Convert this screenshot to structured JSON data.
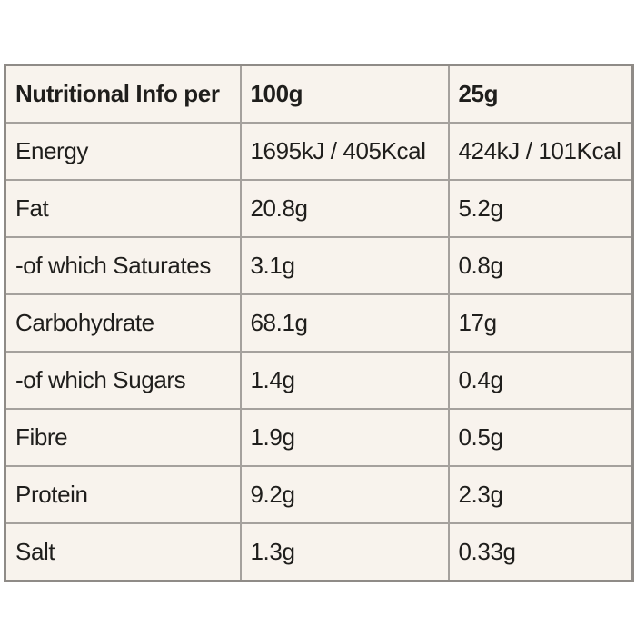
{
  "table": {
    "header": {
      "label": "Nutritional Info per",
      "col_100g": "100g",
      "col_25g": "25g"
    },
    "rows": [
      {
        "label": "Energy",
        "per_100g": "1695kJ / 405Kcal",
        "per_25g": "424kJ / 101Kcal"
      },
      {
        "label": "Fat",
        "per_100g": "20.8g",
        "per_25g": "5.2g"
      },
      {
        "label": "-of which Saturates",
        "per_100g": "3.1g",
        "per_25g": "0.8g"
      },
      {
        "label": "Carbohydrate",
        "per_100g": "68.1g",
        "per_25g": "17g"
      },
      {
        "label": "-of which Sugars",
        "per_100g": "1.4g",
        "per_25g": "0.4g"
      },
      {
        "label": "Fibre",
        "per_100g": "1.9g",
        "per_25g": "0.5g"
      },
      {
        "label": "Protein",
        "per_100g": "9.2g",
        "per_25g": "2.3g"
      },
      {
        "label": "Salt",
        "per_100g": "1.3g",
        "per_25g": "0.33g"
      }
    ],
    "colors": {
      "page_background": "#ffffff",
      "cell_background": "#f8f3ed",
      "border": "#a5a19d",
      "outer_border": "#8f8b87",
      "text": "#1f1e1c"
    }
  }
}
